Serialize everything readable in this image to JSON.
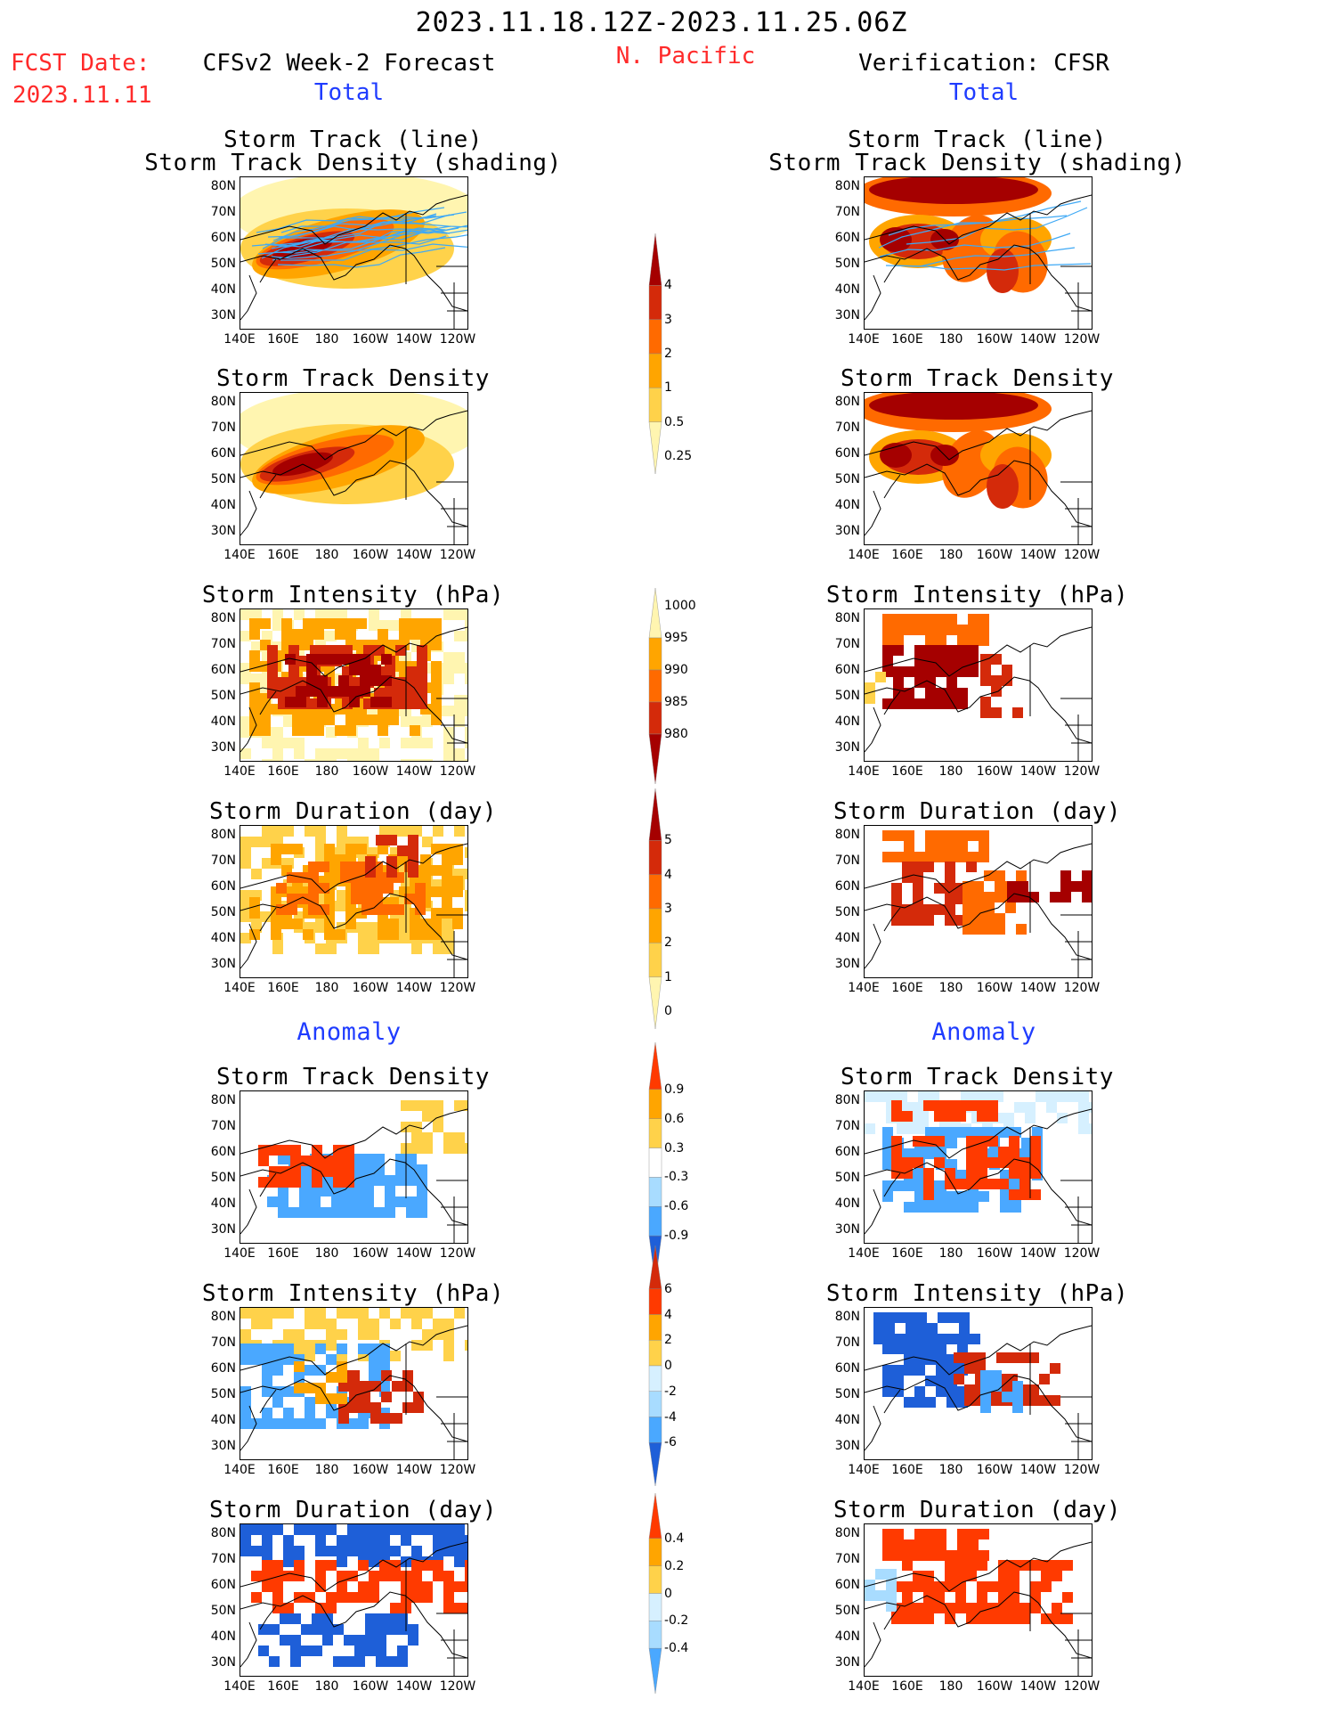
{
  "header": {
    "period": "2023.11.18.12Z-2023.11.25.06Z",
    "region": "N. Pacific",
    "fcst_label": "FCST Date:",
    "fcst_date": "2023.11.11",
    "left_title": "CFSv2 Week-2 Forecast",
    "right_title": "Verification: CFSR",
    "total_left": "Total",
    "total_right": "Total",
    "anomaly_left": "Anomaly",
    "anomaly_right": "Anomaly"
  },
  "axes": {
    "lat_labels": [
      "80N",
      "70N",
      "60N",
      "50N",
      "40N",
      "30N"
    ],
    "lon_labels": [
      "140E",
      "160E",
      "180",
      "160W",
      "140W",
      "120W"
    ]
  },
  "rows": [
    {
      "id": "track-line",
      "title1": "Storm Track (line)",
      "title2": "Storm Track Density (shading)",
      "scale": "density",
      "tracks": true
    },
    {
      "id": "density",
      "title1": "Storm Track Density",
      "scale": "density"
    },
    {
      "id": "intensity",
      "title1": "Storm Intensity (hPa)",
      "scale": "intensity"
    },
    {
      "id": "duration",
      "title1": "Storm Duration (day)",
      "scale": "duration"
    },
    {
      "id": "density-anom",
      "title1": "Storm Track Density",
      "scale": "density_anom"
    },
    {
      "id": "intensity-anom",
      "title1": "Storm Intensity (hPa)",
      "scale": "intensity_anom"
    },
    {
      "id": "duration-anom",
      "title1": "Storm Duration (day)",
      "scale": "duration_anom"
    }
  ],
  "colorbars": {
    "density": {
      "labels": [
        "4",
        "3",
        "2",
        "1",
        "0.5",
        "0.25"
      ],
      "colors": [
        "#a50000",
        "#d42a0a",
        "#ff6a00",
        "#ffa500",
        "#ffd24a",
        "#fff5b0"
      ]
    },
    "intensity": {
      "labels": [
        "1000",
        "995",
        "990",
        "985",
        "980"
      ],
      "colors": [
        "#fff5b0",
        "#ffa500",
        "#ff6a00",
        "#d42a0a",
        "#a50000"
      ]
    },
    "duration": {
      "labels": [
        "5",
        "4",
        "3",
        "2",
        "1",
        "0"
      ],
      "colors": [
        "#a50000",
        "#d42a0a",
        "#ff6a00",
        "#ffa500",
        "#ffd24a",
        "#fff5b0"
      ]
    },
    "density_anom": {
      "labels": [
        "0.9",
        "0.6",
        "0.3",
        "-0.3",
        "-0.6",
        "-0.9"
      ],
      "colors": [
        "#ff3a00",
        "#ffa500",
        "#ffd24a",
        "#ffffff",
        "#a8dcff",
        "#4aa8ff",
        "#1e5fd8"
      ]
    },
    "intensity_anom": {
      "labels": [
        "6",
        "4",
        "2",
        "0",
        "-2",
        "-4",
        "-6"
      ],
      "colors": [
        "#d42a0a",
        "#ff3a00",
        "#ffa500",
        "#ffd24a",
        "#d6f0ff",
        "#a8dcff",
        "#4aa8ff",
        "#1e5fd8"
      ]
    },
    "duration_anom": {
      "labels": [
        "0.4",
        "0.2",
        "0",
        "-0.2",
        "-0.4"
      ],
      "colors": [
        "#ff3a00",
        "#ffa500",
        "#ffd24a",
        "#d6f0ff",
        "#a8dcff",
        "#4aa8ff"
      ]
    }
  }
}
